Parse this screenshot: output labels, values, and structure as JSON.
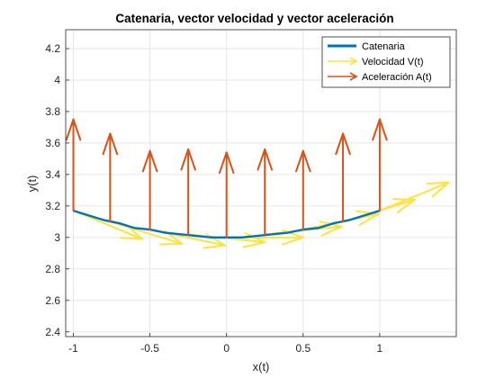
{
  "chart_data": {
    "type": "line",
    "title": "Catenaria, vector velocidad y vector aceleración",
    "xlabel": "x(t)",
    "ylabel": "y(t)",
    "xlim": [
      -1.05,
      1.5
    ],
    "ylim": [
      2.37,
      4.32
    ],
    "xticks": [
      -1,
      -0.5,
      0,
      0.5,
      1
    ],
    "xtick_labels": [
      "-1",
      "-0.5",
      "0",
      "0.5",
      "1"
    ],
    "yticks": [
      2.4,
      2.6,
      2.8,
      3,
      3.2,
      3.4,
      3.6,
      3.8,
      4,
      4.2
    ],
    "ytick_labels": [
      "2.4",
      "2.6",
      "2.8",
      "3",
      "3.2",
      "3.4",
      "3.6",
      "3.8",
      "4",
      "4.2"
    ],
    "grid": true,
    "legend_position": "top-right",
    "series": [
      {
        "name": "Catenaria",
        "color": "#0072BD",
        "kind": "curve",
        "x": [
          -1.0,
          -0.9,
          -0.8,
          -0.7,
          -0.6,
          -0.5,
          -0.4,
          -0.3,
          -0.2,
          -0.1,
          0.0,
          0.1,
          0.2,
          0.3,
          0.4,
          0.5,
          0.6,
          0.7,
          0.8,
          0.9,
          1.0
        ],
        "y": [
          3.17,
          3.14,
          3.11,
          3.09,
          3.06,
          3.05,
          3.03,
          3.02,
          3.01,
          3.0,
          3.0,
          3.0,
          3.01,
          3.02,
          3.03,
          3.05,
          3.06,
          3.09,
          3.11,
          3.14,
          3.17
        ]
      },
      {
        "name": "Velocidad V(t)",
        "color": "#FFE340",
        "kind": "vectors",
        "x": [
          -1.0,
          -0.76,
          -0.5,
          -0.25,
          0.0,
          0.25,
          0.5,
          0.76,
          1.0
        ],
        "y": [
          3.17,
          3.1,
          3.05,
          3.02,
          3.0,
          3.02,
          3.05,
          3.1,
          3.17
        ],
        "u": [
          0.45,
          0.47,
          0.49,
          0.5,
          0.5,
          0.5,
          0.49,
          0.47,
          0.45
        ],
        "v": [
          -0.18,
          -0.14,
          -0.1,
          -0.05,
          0.0,
          0.05,
          0.1,
          0.14,
          0.18
        ]
      },
      {
        "name": "Aceleración A(t)",
        "color": "#D95319",
        "kind": "vectors",
        "x": [
          -1.0,
          -0.76,
          -0.5,
          -0.25,
          0.0,
          0.25,
          0.5,
          0.76,
          1.0
        ],
        "y": [
          3.17,
          3.1,
          3.05,
          3.02,
          3.0,
          3.02,
          3.05,
          3.1,
          3.17
        ],
        "u": [
          0.0,
          0.0,
          0.0,
          0.0,
          0.0,
          0.0,
          0.0,
          0.0,
          0.0
        ],
        "v": [
          0.58,
          0.56,
          0.5,
          0.54,
          0.54,
          0.54,
          0.5,
          0.56,
          0.58
        ]
      }
    ]
  }
}
